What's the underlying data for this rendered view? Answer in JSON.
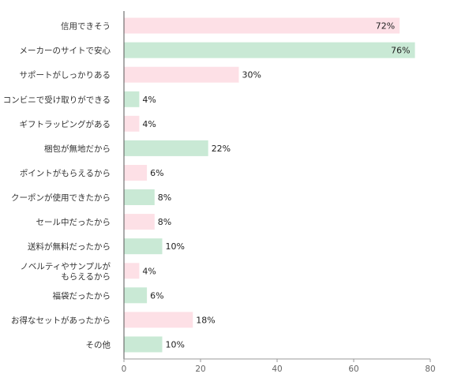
{
  "chart_data": {
    "type": "bar",
    "orientation": "horizontal",
    "categories": [
      [
        "信用できそう"
      ],
      [
        "メーカーのサイトで安心"
      ],
      [
        "サポートがしっかりある"
      ],
      [
        "コンビニで受け取りができる"
      ],
      [
        "ギフトラッピングがある"
      ],
      [
        "梱包が無地だから"
      ],
      [
        "ポイントがもらえるから"
      ],
      [
        "クーポンが使用できたから"
      ],
      [
        "セール中だったから"
      ],
      [
        "送料が無料だったから"
      ],
      [
        "ノベルティやサンプルが",
        "もらえるから"
      ],
      [
        "福袋だったから"
      ],
      [
        "お得なセットがあったから"
      ],
      [
        "その他"
      ]
    ],
    "values": [
      72,
      76,
      30,
      4,
      4,
      22,
      6,
      8,
      8,
      10,
      4,
      6,
      18,
      10
    ],
    "value_labels": [
      "72%",
      "76%",
      "30%",
      "4%",
      "4%",
      "22%",
      "6%",
      "8%",
      "8%",
      "10%",
      "4%",
      "6%",
      "18%",
      "10%"
    ],
    "bar_colors": [
      "#fde0e6",
      "#c9e9d5",
      "#fde0e6",
      "#c9e9d5",
      "#fde0e6",
      "#c9e9d5",
      "#fde0e6",
      "#c9e9d5",
      "#fde0e6",
      "#c9e9d5",
      "#fde0e6",
      "#c9e9d5",
      "#fde0e6",
      "#c9e9d5"
    ],
    "xlim": [
      0,
      80
    ],
    "xticks": [
      0,
      20,
      40,
      60,
      80
    ],
    "grid": false,
    "legend": "none"
  }
}
